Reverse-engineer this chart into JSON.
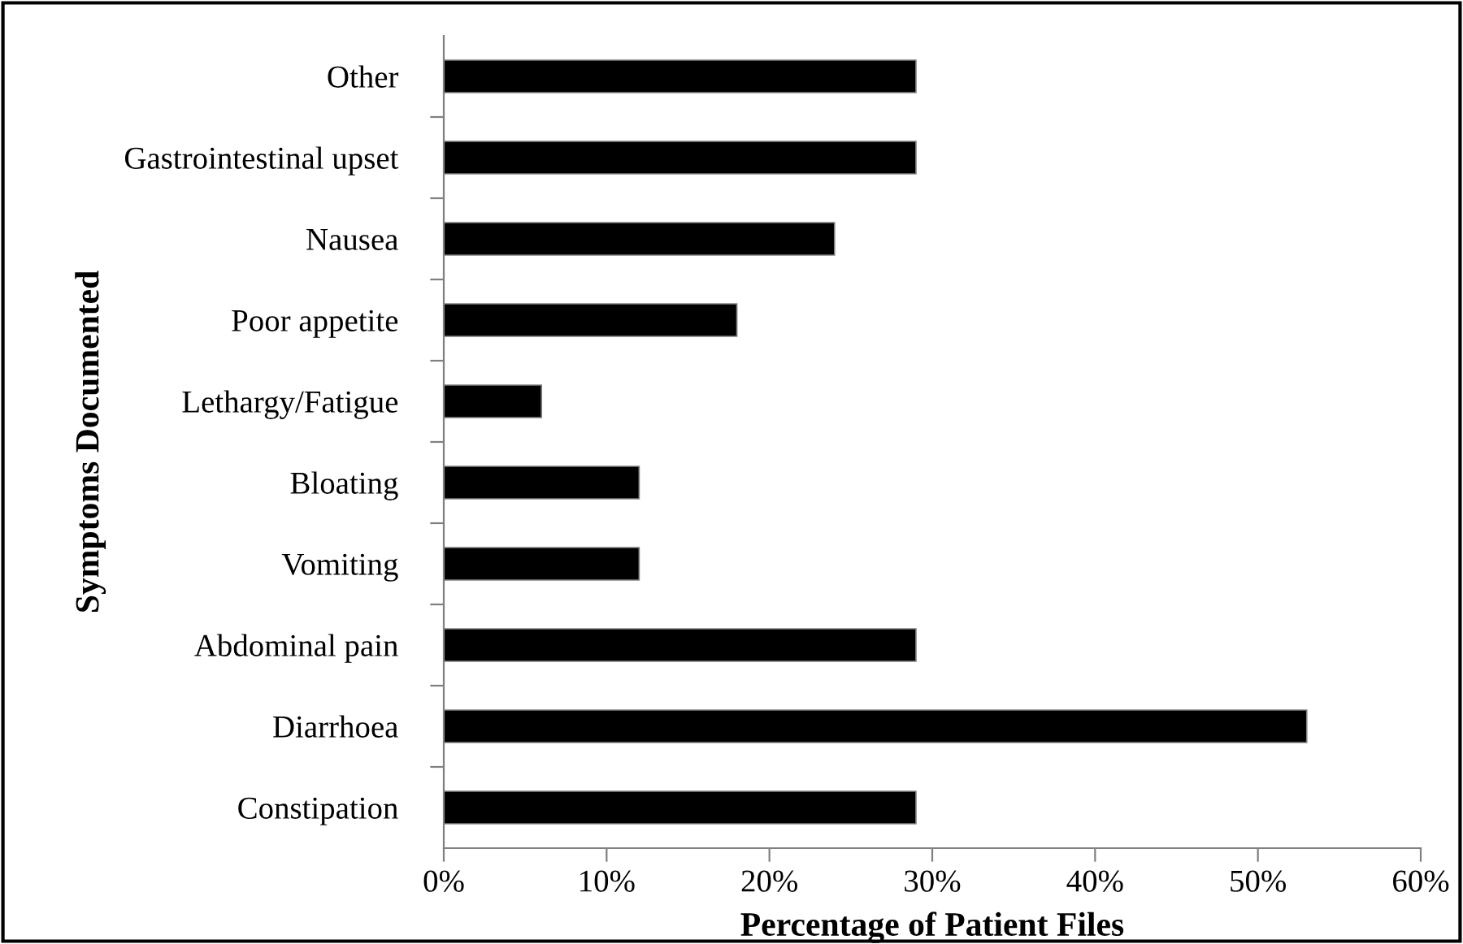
{
  "chart_data": {
    "type": "bar",
    "orientation": "horizontal",
    "xlabel": "Percentage of Patient Files",
    "ylabel": "Symptoms Documented",
    "categories": [
      "Other",
      "Gastrointestinal upset",
      "Nausea",
      "Poor appetite",
      "Lethargy/Fatigue",
      "Bloating",
      "Vomiting",
      "Abdominal pain",
      "Diarrhoea",
      "Constipation"
    ],
    "values": [
      29,
      29,
      24,
      18,
      6,
      12,
      12,
      29,
      53,
      29
    ],
    "color": "#000000",
    "xlim": [
      0,
      60
    ],
    "xticks": [
      {
        "value": 0,
        "label": "0%"
      },
      {
        "value": 10,
        "label": "10%"
      },
      {
        "value": 20,
        "label": "20%"
      },
      {
        "value": 30,
        "label": "30%"
      },
      {
        "value": 40,
        "label": "40%"
      },
      {
        "value": 50,
        "label": "50%"
      },
      {
        "value": 60,
        "label": "60%"
      }
    ],
    "grid": false,
    "legend": false
  }
}
